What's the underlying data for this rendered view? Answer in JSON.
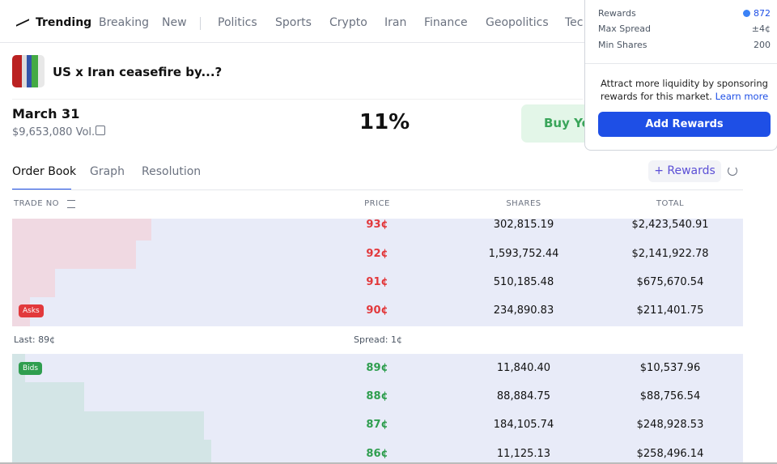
{
  "nav": {
    "items": [
      "Trending",
      "Breaking",
      "New",
      "Politics",
      "Sports",
      "Crypto",
      "Iran",
      "Finance",
      "Geopolitics",
      "Tec"
    ]
  },
  "market": {
    "title": "US x Iran ceasefire by...?",
    "date": "March 31",
    "volume": "$9,653,080 Vol.",
    "probability": "11%",
    "buy_button": "Buy Yes"
  },
  "tabs": {
    "items": [
      "Order Book",
      "Graph",
      "Resolution"
    ],
    "rewards_button": "+ Rewards"
  },
  "order_book": {
    "headers": [
      "TRADE NO",
      "PRICE",
      "SHARES",
      "TOTAL"
    ],
    "asks_label": "Asks",
    "asks": [
      [
        "93¢",
        "302,815.19",
        "$2,423,540.91"
      ],
      [
        "92¢",
        "1,593,752.44",
        "$2,141,922.78"
      ],
      [
        "91¢",
        "510,185.48",
        "$675,670.54"
      ],
      [
        "90¢",
        "234,890.83",
        "$211,401.75"
      ]
    ],
    "last": "Last: 89¢",
    "spread": "Spread: 1¢",
    "bids_label": "Bids",
    "bids": [
      [
        "89¢",
        "11,840.40",
        "$10,537.96"
      ],
      [
        "88¢",
        "88,884.75",
        "$88,756.54"
      ],
      [
        "87¢",
        "184,105.74",
        "$248,928.53"
      ],
      [
        "86¢",
        "11,125.13",
        "$258,496.14"
      ]
    ]
  },
  "popup": {
    "rows": [
      [
        "Rewards",
        "872"
      ],
      [
        "Max Spread",
        "±4¢"
      ],
      [
        "Min Shares",
        "200"
      ]
    ],
    "text": "Attract more liquidity by sponsoring rewards for this market.",
    "link": "Learn more",
    "button": "Add Rewards"
  }
}
